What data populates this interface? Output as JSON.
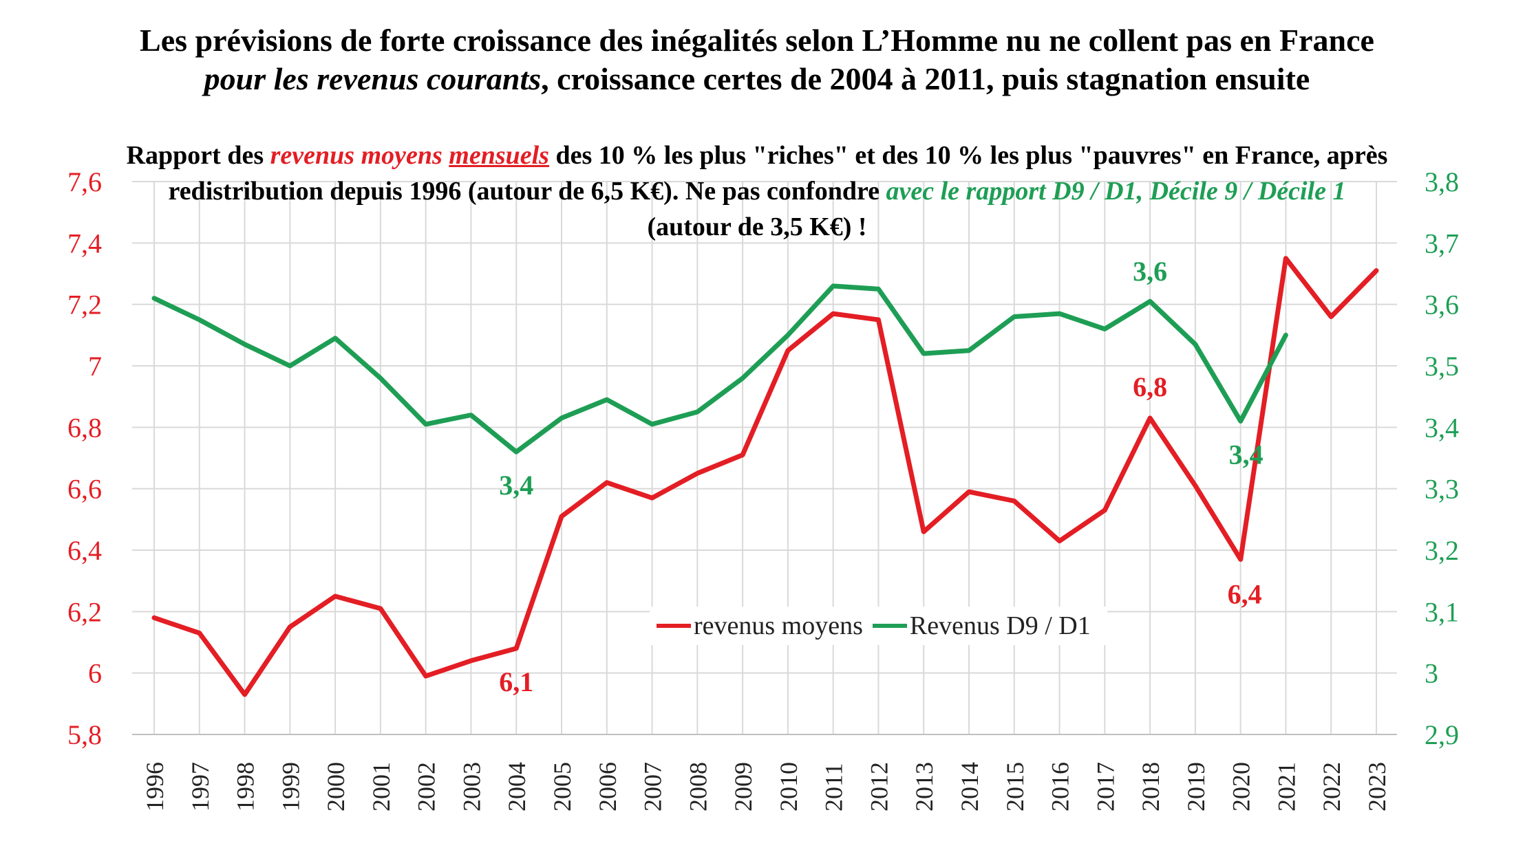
{
  "title": {
    "line1": "Les prévisions de forte croissance des inégalités selon L’Homme nu ne collent pas en France",
    "line2_italic": "pour les revenus courants",
    "line2_rest": ", croissance certes de 2004 à 2011, puis stagnation ensuite"
  },
  "subtitle": {
    "p1": "Rapport des ",
    "p2_red_italic": "revenus moyens",
    "p3_space": " ",
    "p4_red_underline": "mensuels",
    "p5": " des 10 % les plus \"riches\" et des 10 % les plus \"pauvres\" en France, après redistribution depuis 1996 (autour de 6,5 K€). Ne pas confondre ",
    "p6_green_italic": "avec le rapport D9 / D1,  Décile 9 / Décile 1",
    "p7": " (autour de 3,5 K€) !"
  },
  "colors": {
    "red": "#e31e24",
    "green": "#1e9e55",
    "grid": "#d9d9d9"
  },
  "legend": {
    "red_label": "revenus moyens",
    "green_label": "Revenus D9 / D1"
  },
  "chart_data": {
    "type": "line",
    "categories": [
      "1996",
      "1997",
      "1998",
      "1999",
      "2000",
      "2001",
      "2002",
      "2003",
      "2004",
      "2005",
      "2006",
      "2007",
      "2008",
      "2009",
      "2010",
      "2011",
      "2012",
      "2013",
      "2014",
      "2015",
      "2016",
      "2017",
      "2018",
      "2019",
      "2020",
      "2021",
      "2022",
      "2023"
    ],
    "left_axis": {
      "min": 5.8,
      "max": 7.6,
      "step": 0.2,
      "ticks": [
        "5,8",
        "6",
        "6,2",
        "6,4",
        "6,6",
        "6,8",
        "7",
        "7,2",
        "7,4",
        "7,6"
      ]
    },
    "right_axis": {
      "min": 2.9,
      "max": 3.8,
      "step": 0.1,
      "ticks": [
        "2,9",
        "3",
        "3,1",
        "3,2",
        "3,3",
        "3,4",
        "3,5",
        "3,6",
        "3,7",
        "3,8"
      ]
    },
    "series": [
      {
        "name": "revenus moyens",
        "axis": "left",
        "color": "#e31e24",
        "values": [
          6.18,
          6.13,
          5.93,
          6.15,
          6.25,
          6.21,
          5.99,
          6.04,
          6.08,
          6.51,
          6.62,
          6.57,
          6.65,
          6.71,
          7.05,
          7.17,
          7.15,
          6.46,
          6.59,
          6.56,
          6.43,
          6.53,
          6.83,
          6.61,
          6.37,
          7.35,
          7.16,
          7.31
        ]
      },
      {
        "name": "Revenus D9 / D1",
        "axis": "right",
        "color": "#1e9e55",
        "values": [
          3.61,
          3.575,
          3.535,
          3.5,
          3.545,
          3.48,
          3.405,
          3.42,
          3.36,
          3.415,
          3.445,
          3.405,
          3.425,
          3.48,
          3.55,
          3.63,
          3.625,
          3.52,
          3.525,
          3.58,
          3.585,
          3.56,
          3.605,
          3.535,
          3.41,
          3.55,
          null,
          null
        ]
      }
    ],
    "annotations": [
      {
        "text": "6,1",
        "series": "revenus moyens",
        "year": "2004"
      },
      {
        "text": "6,8",
        "series": "revenus moyens",
        "year": "2018"
      },
      {
        "text": "6,4",
        "series": "revenus moyens",
        "year": "2020"
      },
      {
        "text": "3,4",
        "series": "Revenus D9 / D1",
        "year": "2004"
      },
      {
        "text": "3,6",
        "series": "Revenus D9 / D1",
        "year": "2018"
      },
      {
        "text": "3,4",
        "series": "Revenus D9 / D1",
        "year": "2020"
      }
    ]
  }
}
